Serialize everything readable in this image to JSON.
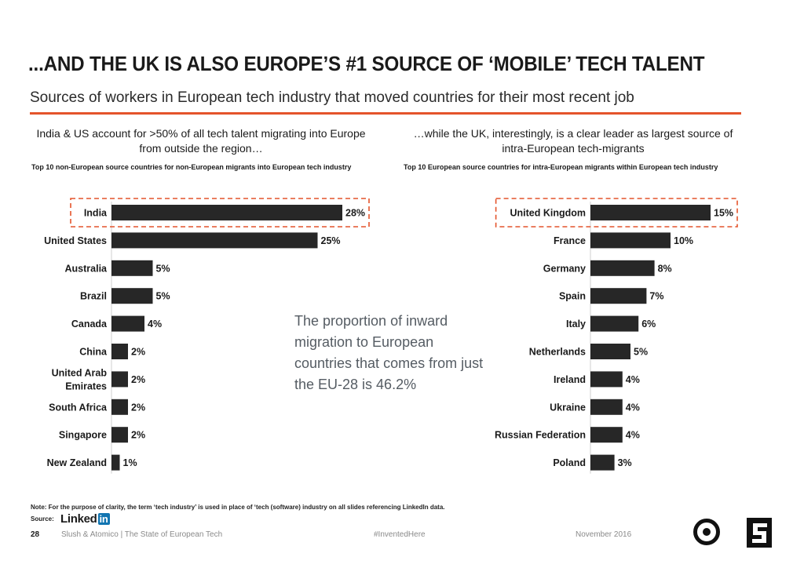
{
  "title": "...AND THE UK IS ALSO EUROPE’S #1 SOURCE OF ‘MOBILE’ TECH TALENT",
  "subtitle": "Sources of workers in European tech industry that moved countries for their most recent job",
  "colors": {
    "accent": "#e4542b",
    "bar": "#272727",
    "callout": "#555c63"
  },
  "left_panel": {
    "heading": "India & US account for >50% of all tech talent migrating into Europe from outside the region…",
    "subheading": "Top 10 non-European source countries for non-European migrants into European tech industry"
  },
  "right_panel": {
    "heading": "…while the UK, interestingly, is a clear leader as largest source of intra-European tech-migrants",
    "subheading": "Top 10 European source countries for intra-European migrants within European tech industry"
  },
  "callout": "The proportion of inward migration to European countries that comes from just the EU-28 is 46.2%",
  "note": "Note: For the purpose of clarity, the term ‘tech industry’ is used in place of ‘tech (software) industry on all slides referencing LinkedIn data.",
  "source_label": "Source:",
  "source_brand": "Linked",
  "source_brand_in": "in",
  "footer": {
    "page_number": "28",
    "brand": "Slush & Atomico | The State of European Tech",
    "hashtag": "#InventedHere",
    "date": "November 2016"
  },
  "chart_data": [
    {
      "type": "bar",
      "orientation": "horizontal",
      "categories": [
        "India",
        "United States",
        "Australia",
        "Brazil",
        "Canada",
        "China",
        "United Arab Emirates",
        "South Africa",
        "Singapore",
        "New Zealand"
      ],
      "category_lines": [
        [
          "India"
        ],
        [
          "United States"
        ],
        [
          "Australia"
        ],
        [
          "Brazil"
        ],
        [
          "Canada"
        ],
        [
          "China"
        ],
        [
          "United Arab",
          "Emirates"
        ],
        [
          "South Africa"
        ],
        [
          "Singapore"
        ],
        [
          "New Zealand"
        ]
      ],
      "values": [
        28,
        25,
        5,
        5,
        4,
        2,
        2,
        2,
        2,
        1
      ],
      "labels": [
        "28%",
        "25%",
        "5%",
        "5%",
        "4%",
        "2%",
        "2%",
        "2%",
        "2%",
        "1%"
      ],
      "unit": "%",
      "highlight_index": 0
    },
    {
      "type": "bar",
      "orientation": "horizontal",
      "categories": [
        "United Kingdom",
        "France",
        "Germany",
        "Spain",
        "Italy",
        "Netherlands",
        "Ireland",
        "Ukraine",
        "Russian Federation",
        "Poland"
      ],
      "category_lines": [
        [
          "United Kingdom"
        ],
        [
          "France"
        ],
        [
          "Germany"
        ],
        [
          "Spain"
        ],
        [
          "Italy"
        ],
        [
          "Netherlands"
        ],
        [
          "Ireland"
        ],
        [
          "Ukraine"
        ],
        [
          "Russian Federation"
        ],
        [
          "Poland"
        ]
      ],
      "values": [
        15,
        10,
        8,
        7,
        6,
        5,
        4,
        4,
        4,
        3
      ],
      "labels": [
        "15%",
        "10%",
        "8%",
        "7%",
        "6%",
        "5%",
        "4%",
        "4%",
        "4%",
        "3%"
      ],
      "unit": "%",
      "highlight_index": 0
    }
  ]
}
